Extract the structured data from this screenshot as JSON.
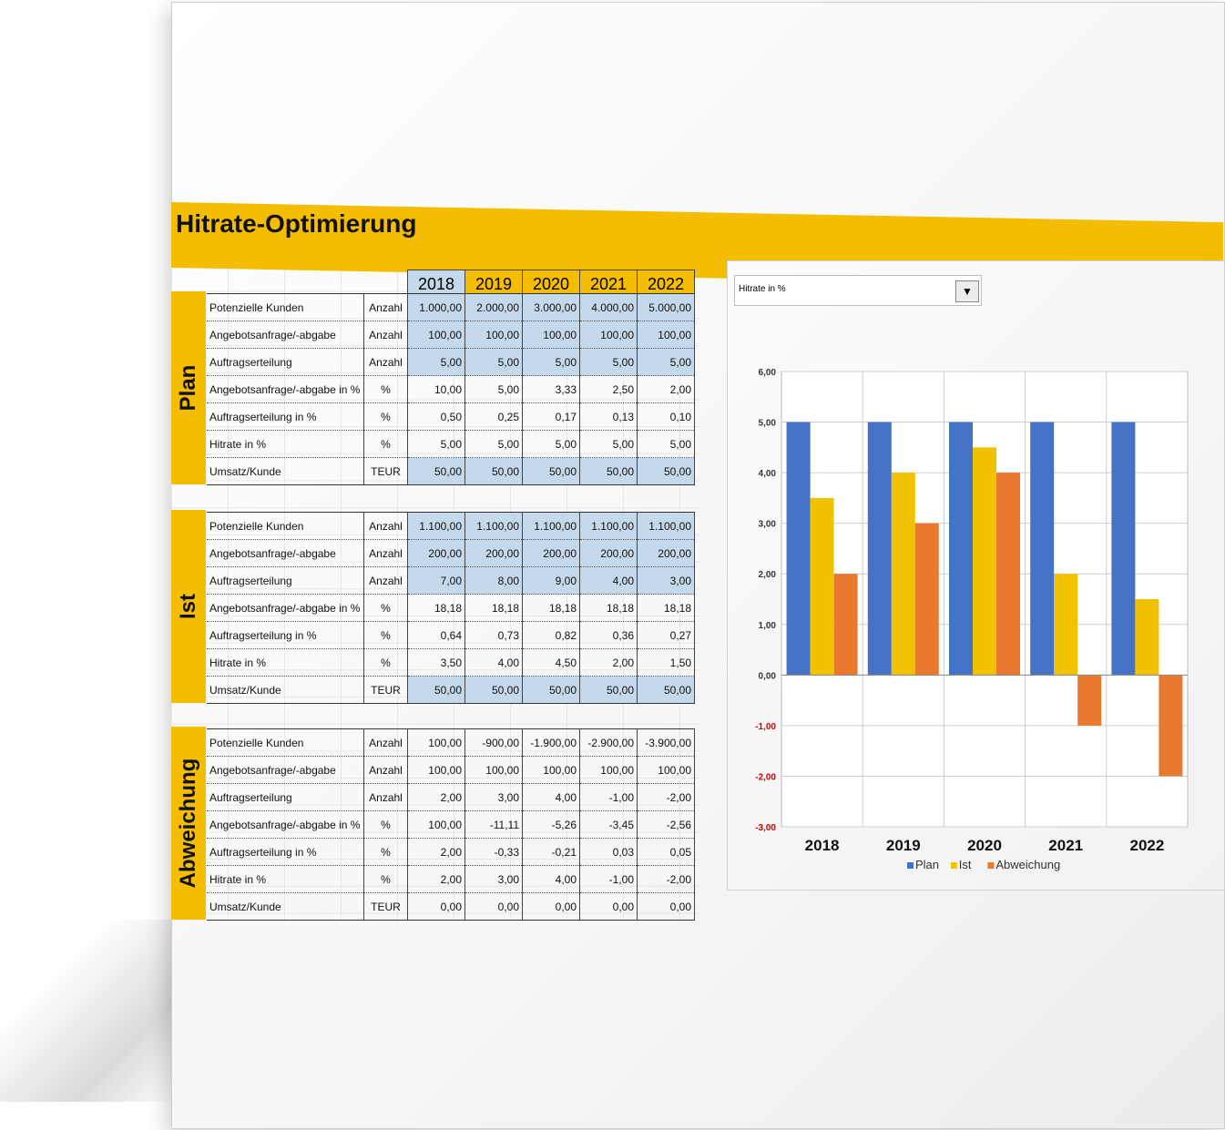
{
  "title": "Hitrate-Optimierung",
  "years": [
    "2018",
    "2019",
    "2020",
    "2021",
    "2022"
  ],
  "sections": [
    {
      "name": "Plan",
      "rows": [
        {
          "label": "Potenzielle Kunden",
          "unit": "Anzahl",
          "values": [
            "1.000,00",
            "2.000,00",
            "3.000,00",
            "4.000,00",
            "5.000,00"
          ],
          "input": true
        },
        {
          "label": "Angebotsanfrage/-abgabe",
          "unit": "Anzahl",
          "values": [
            "100,00",
            "100,00",
            "100,00",
            "100,00",
            "100,00"
          ],
          "input": true
        },
        {
          "label": "Auftragserteilung",
          "unit": "Anzahl",
          "values": [
            "5,00",
            "5,00",
            "5,00",
            "5,00",
            "5,00"
          ],
          "input": true
        },
        {
          "label": "Angebotsanfrage/-abgabe in %",
          "unit": "%",
          "values": [
            "10,00",
            "5,00",
            "3,33",
            "2,50",
            "2,00"
          ],
          "input": false
        },
        {
          "label": "Auftragserteilung in %",
          "unit": "%",
          "values": [
            "0,50",
            "0,25",
            "0,17",
            "0,13",
            "0,10"
          ],
          "input": false
        },
        {
          "label": "Hitrate in %",
          "unit": "%",
          "values": [
            "5,00",
            "5,00",
            "5,00",
            "5,00",
            "5,00"
          ],
          "input": false
        },
        {
          "label": "Umsatz/Kunde",
          "unit": "TEUR",
          "values": [
            "50,00",
            "50,00",
            "50,00",
            "50,00",
            "50,00"
          ],
          "input": true
        }
      ]
    },
    {
      "name": "Ist",
      "rows": [
        {
          "label": "Potenzielle Kunden",
          "unit": "Anzahl",
          "values": [
            "1.100,00",
            "1.100,00",
            "1.100,00",
            "1.100,00",
            "1.100,00"
          ],
          "input": true
        },
        {
          "label": "Angebotsanfrage/-abgabe",
          "unit": "Anzahl",
          "values": [
            "200,00",
            "200,00",
            "200,00",
            "200,00",
            "200,00"
          ],
          "input": true
        },
        {
          "label": "Auftragserteilung",
          "unit": "Anzahl",
          "values": [
            "7,00",
            "8,00",
            "9,00",
            "4,00",
            "3,00"
          ],
          "input": true
        },
        {
          "label": "Angebotsanfrage/-abgabe in %",
          "unit": "%",
          "values": [
            "18,18",
            "18,18",
            "18,18",
            "18,18",
            "18,18"
          ],
          "input": false
        },
        {
          "label": "Auftragserteilung in %",
          "unit": "%",
          "values": [
            "0,64",
            "0,73",
            "0,82",
            "0,36",
            "0,27"
          ],
          "input": false
        },
        {
          "label": "Hitrate in %",
          "unit": "%",
          "values": [
            "3,50",
            "4,00",
            "4,50",
            "2,00",
            "1,50"
          ],
          "input": false
        },
        {
          "label": "Umsatz/Kunde",
          "unit": "TEUR",
          "values": [
            "50,00",
            "50,00",
            "50,00",
            "50,00",
            "50,00"
          ],
          "input": true
        }
      ]
    },
    {
      "name": "Abweichung",
      "rows": [
        {
          "label": "Potenzielle Kunden",
          "unit": "Anzahl",
          "values": [
            "100,00",
            "-900,00",
            "-1.900,00",
            "-2.900,00",
            "-3.900,00"
          ],
          "input": false
        },
        {
          "label": "Angebotsanfrage/-abgabe",
          "unit": "Anzahl",
          "values": [
            "100,00",
            "100,00",
            "100,00",
            "100,00",
            "100,00"
          ],
          "input": false
        },
        {
          "label": "Auftragserteilung",
          "unit": "Anzahl",
          "values": [
            "2,00",
            "3,00",
            "4,00",
            "-1,00",
            "-2,00"
          ],
          "input": false
        },
        {
          "label": "Angebotsanfrage/-abgabe in %",
          "unit": "%",
          "values": [
            "100,00",
            "-11,11",
            "-5,26",
            "-3,45",
            "-2,56"
          ],
          "input": false
        },
        {
          "label": "Auftragserteilung in %",
          "unit": "%",
          "values": [
            "2,00",
            "-0,33",
            "-0,21",
            "0,03",
            "0,05"
          ],
          "input": false
        },
        {
          "label": "Hitrate in %",
          "unit": "%",
          "values": [
            "2,00",
            "3,00",
            "4,00",
            "-1,00",
            "-2,00"
          ],
          "input": false
        },
        {
          "label": "Umsatz/Kunde",
          "unit": "TEUR",
          "values": [
            "0,00",
            "0,00",
            "0,00",
            "0,00",
            "0,00"
          ],
          "input": false
        }
      ]
    }
  ],
  "dropdown": {
    "selected": "Hitrate in %"
  },
  "colors": {
    "accent": "#f5bd00",
    "input_cell": "#c4d9ec",
    "plan": "#4472c4",
    "ist": "#f2c200",
    "abweichung": "#e8792e",
    "negative_tick": "#cc0000"
  },
  "chart_data": {
    "type": "bar",
    "categories": [
      "2018",
      "2019",
      "2020",
      "2021",
      "2022"
    ],
    "series": [
      {
        "name": "Plan",
        "values": [
          5.0,
          5.0,
          5.0,
          5.0,
          5.0
        ]
      },
      {
        "name": "Ist",
        "values": [
          3.5,
          4.0,
          4.5,
          2.0,
          1.5
        ]
      },
      {
        "name": "Abweichung",
        "values": [
          2.0,
          3.0,
          4.0,
          -1.0,
          -2.0
        ]
      }
    ],
    "ylim": [
      -3,
      6
    ],
    "yticks": [
      "6,00",
      "5,00",
      "4,00",
      "3,00",
      "2,00",
      "1,00",
      "0,00",
      "-1,00",
      "-2,00",
      "-3,00"
    ],
    "grid": true,
    "legend": "bottom"
  }
}
